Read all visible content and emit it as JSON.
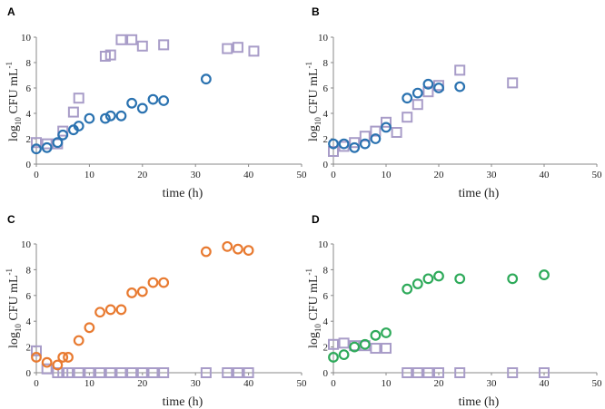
{
  "chart_data": [
    {
      "type": "scatter",
      "panel": "A",
      "xlabel": "time (h)",
      "ylabel_base": "log",
      "ylabel_sub": "10",
      "ylabel_rest": " CFU mL",
      "ylabel_sup": "-1",
      "xlim": [
        0,
        50
      ],
      "ylim": [
        0,
        10
      ],
      "xticks": [
        0,
        10,
        20,
        30,
        40,
        50
      ],
      "yticks": [
        0,
        2,
        4,
        6,
        8,
        10
      ],
      "series": [
        {
          "name": "circles",
          "marker": "circle",
          "color": "#2a72b0",
          "x": [
            0,
            2,
            4,
            5,
            7,
            8,
            10,
            13,
            14,
            16,
            18,
            20,
            22,
            24,
            32
          ],
          "y": [
            1.2,
            1.3,
            1.7,
            2.3,
            2.7,
            3.0,
            3.6,
            3.6,
            3.8,
            3.8,
            4.8,
            4.4,
            5.1,
            5.0,
            6.7
          ]
        },
        {
          "name": "squares",
          "marker": "square",
          "color": "#a89cc8",
          "x": [
            0,
            2,
            4,
            5,
            7,
            8,
            13,
            14,
            16,
            18,
            20,
            24,
            36,
            38,
            41
          ],
          "y": [
            1.7,
            1.6,
            1.6,
            2.6,
            4.1,
            5.2,
            8.5,
            8.6,
            9.8,
            9.8,
            9.3,
            9.4,
            9.1,
            9.2,
            8.9
          ]
        }
      ]
    },
    {
      "type": "scatter",
      "panel": "B",
      "xlabel": "time (h)",
      "ylabel_base": "log",
      "ylabel_sub": "10",
      "ylabel_rest": " CFU mL",
      "ylabel_sup": "-1",
      "xlim": [
        0,
        50
      ],
      "ylim": [
        0,
        10
      ],
      "xticks": [
        0,
        10,
        20,
        30,
        40,
        50
      ],
      "yticks": [
        0,
        2,
        4,
        6,
        8,
        10
      ],
      "series": [
        {
          "name": "circles",
          "marker": "circle",
          "color": "#2a72b0",
          "x": [
            0,
            2,
            4,
            6,
            8,
            10,
            14,
            16,
            18,
            20,
            24
          ],
          "y": [
            1.6,
            1.6,
            1.3,
            1.6,
            2.0,
            2.9,
            5.2,
            5.6,
            6.3,
            6.0,
            6.1
          ]
        },
        {
          "name": "squares",
          "marker": "square",
          "color": "#a89cc8",
          "x": [
            0,
            2,
            4,
            6,
            8,
            10,
            12,
            14,
            16,
            18,
            20,
            24,
            34
          ],
          "y": [
            1.0,
            1.4,
            1.7,
            2.2,
            2.6,
            3.3,
            2.5,
            3.7,
            4.7,
            5.7,
            6.2,
            7.4,
            6.4
          ]
        }
      ]
    },
    {
      "type": "scatter",
      "panel": "C",
      "xlabel": "time (h)",
      "ylabel_base": "log",
      "ylabel_sub": "10",
      "ylabel_rest": " CFU mL",
      "ylabel_sup": "-1",
      "xlim": [
        0,
        50
      ],
      "ylim": [
        0,
        10
      ],
      "xticks": [
        0,
        10,
        20,
        30,
        40,
        50
      ],
      "yticks": [
        0,
        2,
        4,
        6,
        8,
        10
      ],
      "series": [
        {
          "name": "circles",
          "marker": "circle",
          "color": "#e87a30",
          "x": [
            0,
            2,
            4,
            5,
            6,
            8,
            10,
            12,
            14,
            16,
            18,
            20,
            22,
            24,
            32,
            36,
            38,
            40
          ],
          "y": [
            1.2,
            0.8,
            0.6,
            1.2,
            1.2,
            2.5,
            3.5,
            4.7,
            4.9,
            4.9,
            6.2,
            6.3,
            7.0,
            7.0,
            9.4,
            9.8,
            9.6,
            9.5
          ]
        },
        {
          "name": "squares",
          "marker": "square",
          "color": "#a89cc8",
          "x": [
            0,
            2,
            4,
            5,
            6,
            8,
            10,
            12,
            14,
            16,
            18,
            20,
            22,
            24,
            32,
            36,
            38,
            40
          ],
          "y": [
            1.7,
            0.3,
            0,
            0,
            0,
            0,
            0,
            0,
            0,
            0,
            0,
            0,
            0,
            0,
            0,
            0,
            0,
            0
          ]
        }
      ]
    },
    {
      "type": "scatter",
      "panel": "D",
      "xlabel": "time (h)",
      "ylabel_base": "log",
      "ylabel_sub": "10",
      "ylabel_rest": " CFU mL",
      "ylabel_sup": "-1",
      "xlim": [
        0,
        50
      ],
      "ylim": [
        0,
        10
      ],
      "xticks": [
        0,
        10,
        20,
        30,
        40,
        50
      ],
      "yticks": [
        0,
        2,
        4,
        6,
        8,
        10
      ],
      "series": [
        {
          "name": "circles",
          "marker": "circle",
          "color": "#2eaa5a",
          "x": [
            0,
            2,
            4,
            6,
            8,
            10,
            14,
            16,
            18,
            20,
            24,
            34,
            40
          ],
          "y": [
            1.2,
            1.4,
            2.0,
            2.2,
            2.9,
            3.1,
            6.5,
            6.9,
            7.3,
            7.5,
            7.3,
            7.3,
            7.6
          ]
        },
        {
          "name": "squares",
          "marker": "square",
          "color": "#a89cc8",
          "x": [
            0,
            2,
            4,
            6,
            8,
            10,
            14,
            16,
            18,
            20,
            24,
            34,
            40
          ],
          "y": [
            2.2,
            2.3,
            2.1,
            2.1,
            1.9,
            1.9,
            0,
            0,
            0,
            0,
            0,
            0,
            0
          ]
        }
      ]
    }
  ]
}
